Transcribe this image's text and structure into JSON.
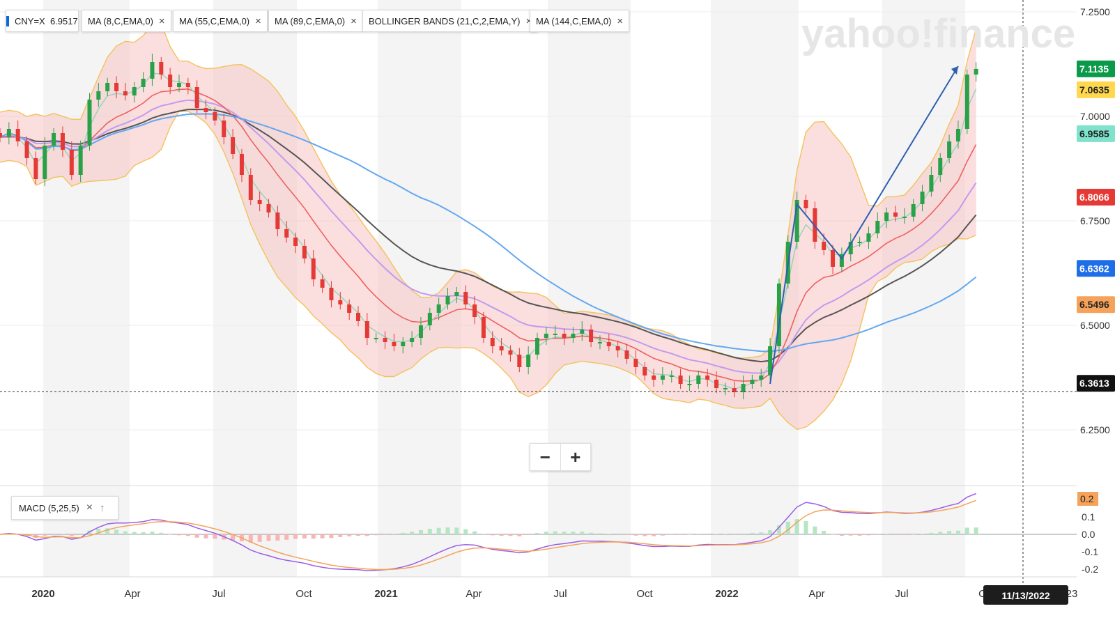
{
  "tags": {
    "symbol": "CNY=X",
    "price": "6.9517",
    "indicators": [
      "MA (8,C,EMA,0)",
      "MA (55,C,EMA,0)",
      "MA (89,C,EMA,0)",
      "BOLLINGER BANDS (21,C,2,EMA,Y)",
      "MA (144,C,EMA,0)"
    ]
  },
  "watermark": "yahoo!finance",
  "macd_label": "MACD (5,25,5)",
  "zoom": {
    "minus": "−",
    "plus": "+"
  },
  "cursor_date": "11/13/2022",
  "chart_data": [
    {
      "type": "candlestick",
      "symbol": "CNY=X",
      "ylim": [
        6.15,
        7.25
      ],
      "yticks": [
        "7.2500",
        "7.0000",
        "6.7500",
        "6.5000",
        "6.2500"
      ],
      "xticks": [
        "2020",
        "Apr",
        "Jul",
        "Oct",
        "2021",
        "Apr",
        "Jul",
        "Oct",
        "2022",
        "Apr",
        "Jul",
        "O",
        "23"
      ],
      "close_series": [
        6.95,
        6.97,
        6.94,
        6.9,
        6.85,
        6.93,
        6.96,
        6.92,
        6.86,
        6.93,
        7.04,
        7.06,
        7.08,
        7.06,
        7.05,
        7.07,
        7.09,
        7.13,
        7.1,
        7.07,
        7.08,
        7.07,
        7.02,
        7.01,
        6.99,
        6.95,
        6.91,
        6.86,
        6.8,
        6.79,
        6.77,
        6.73,
        6.71,
        6.69,
        6.66,
        6.61,
        6.59,
        6.56,
        6.55,
        6.53,
        6.51,
        6.47,
        6.47,
        6.46,
        6.45,
        6.46,
        6.47,
        6.5,
        6.53,
        6.55,
        6.57,
        6.58,
        6.55,
        6.52,
        6.47,
        6.45,
        6.44,
        6.43,
        6.4,
        6.43,
        6.47,
        6.48,
        6.48,
        6.47,
        6.48,
        6.49,
        6.46,
        6.46,
        6.45,
        6.44,
        6.42,
        6.4,
        6.38,
        6.37,
        6.38,
        6.38,
        6.36,
        6.36,
        6.38,
        6.37,
        6.35,
        6.35,
        6.34,
        6.36,
        6.37,
        6.38,
        6.45,
        6.6,
        6.7,
        6.8,
        6.78,
        6.7,
        6.68,
        6.64,
        6.67,
        6.7,
        6.7,
        6.72,
        6.75,
        6.77,
        6.76,
        6.76,
        6.79,
        6.82,
        6.86,
        6.9,
        6.94,
        6.97,
        7.1,
        7.1135
      ],
      "price_labels": [
        {
          "label": "7.1135",
          "color": "#0a9a4a"
        },
        {
          "label": "7.0635",
          "color": "#ffd84d"
        },
        {
          "label": "6.9585",
          "color": "#7ee2cc"
        },
        {
          "label": "6.8066",
          "color": "#e53935"
        },
        {
          "label": "6.6362",
          "color": "#1e6ee8"
        },
        {
          "label": "6.5496",
          "color": "#f5a25a"
        },
        {
          "label": "6.3613",
          "color": "#111111"
        }
      ],
      "hover_price": "6.3613",
      "series": [
        {
          "name": "MA (8,C,EMA,0)",
          "color": "#8fd4be"
        },
        {
          "name": "MA (55,C,EMA,0)",
          "color": "#f06060"
        },
        {
          "name": "MA (89,C,EMA,0)",
          "color": "#c29af0"
        },
        {
          "name": "BOLLINGER BANDS (21,C,2,EMA,Y)",
          "color": "#f7c3c3"
        },
        {
          "name": "MA (144,C,EMA,0)",
          "color": "#555555"
        }
      ],
      "grid": true
    },
    {
      "type": "line",
      "name": "MACD (5,25,5)",
      "ylim": [
        -0.25,
        0.25
      ],
      "yticks": [
        "0.2",
        "0.1",
        "0.0",
        "-0.1",
        "-0.2"
      ],
      "value_label": "0.2",
      "value_label_color": "#f5a25a"
    }
  ]
}
